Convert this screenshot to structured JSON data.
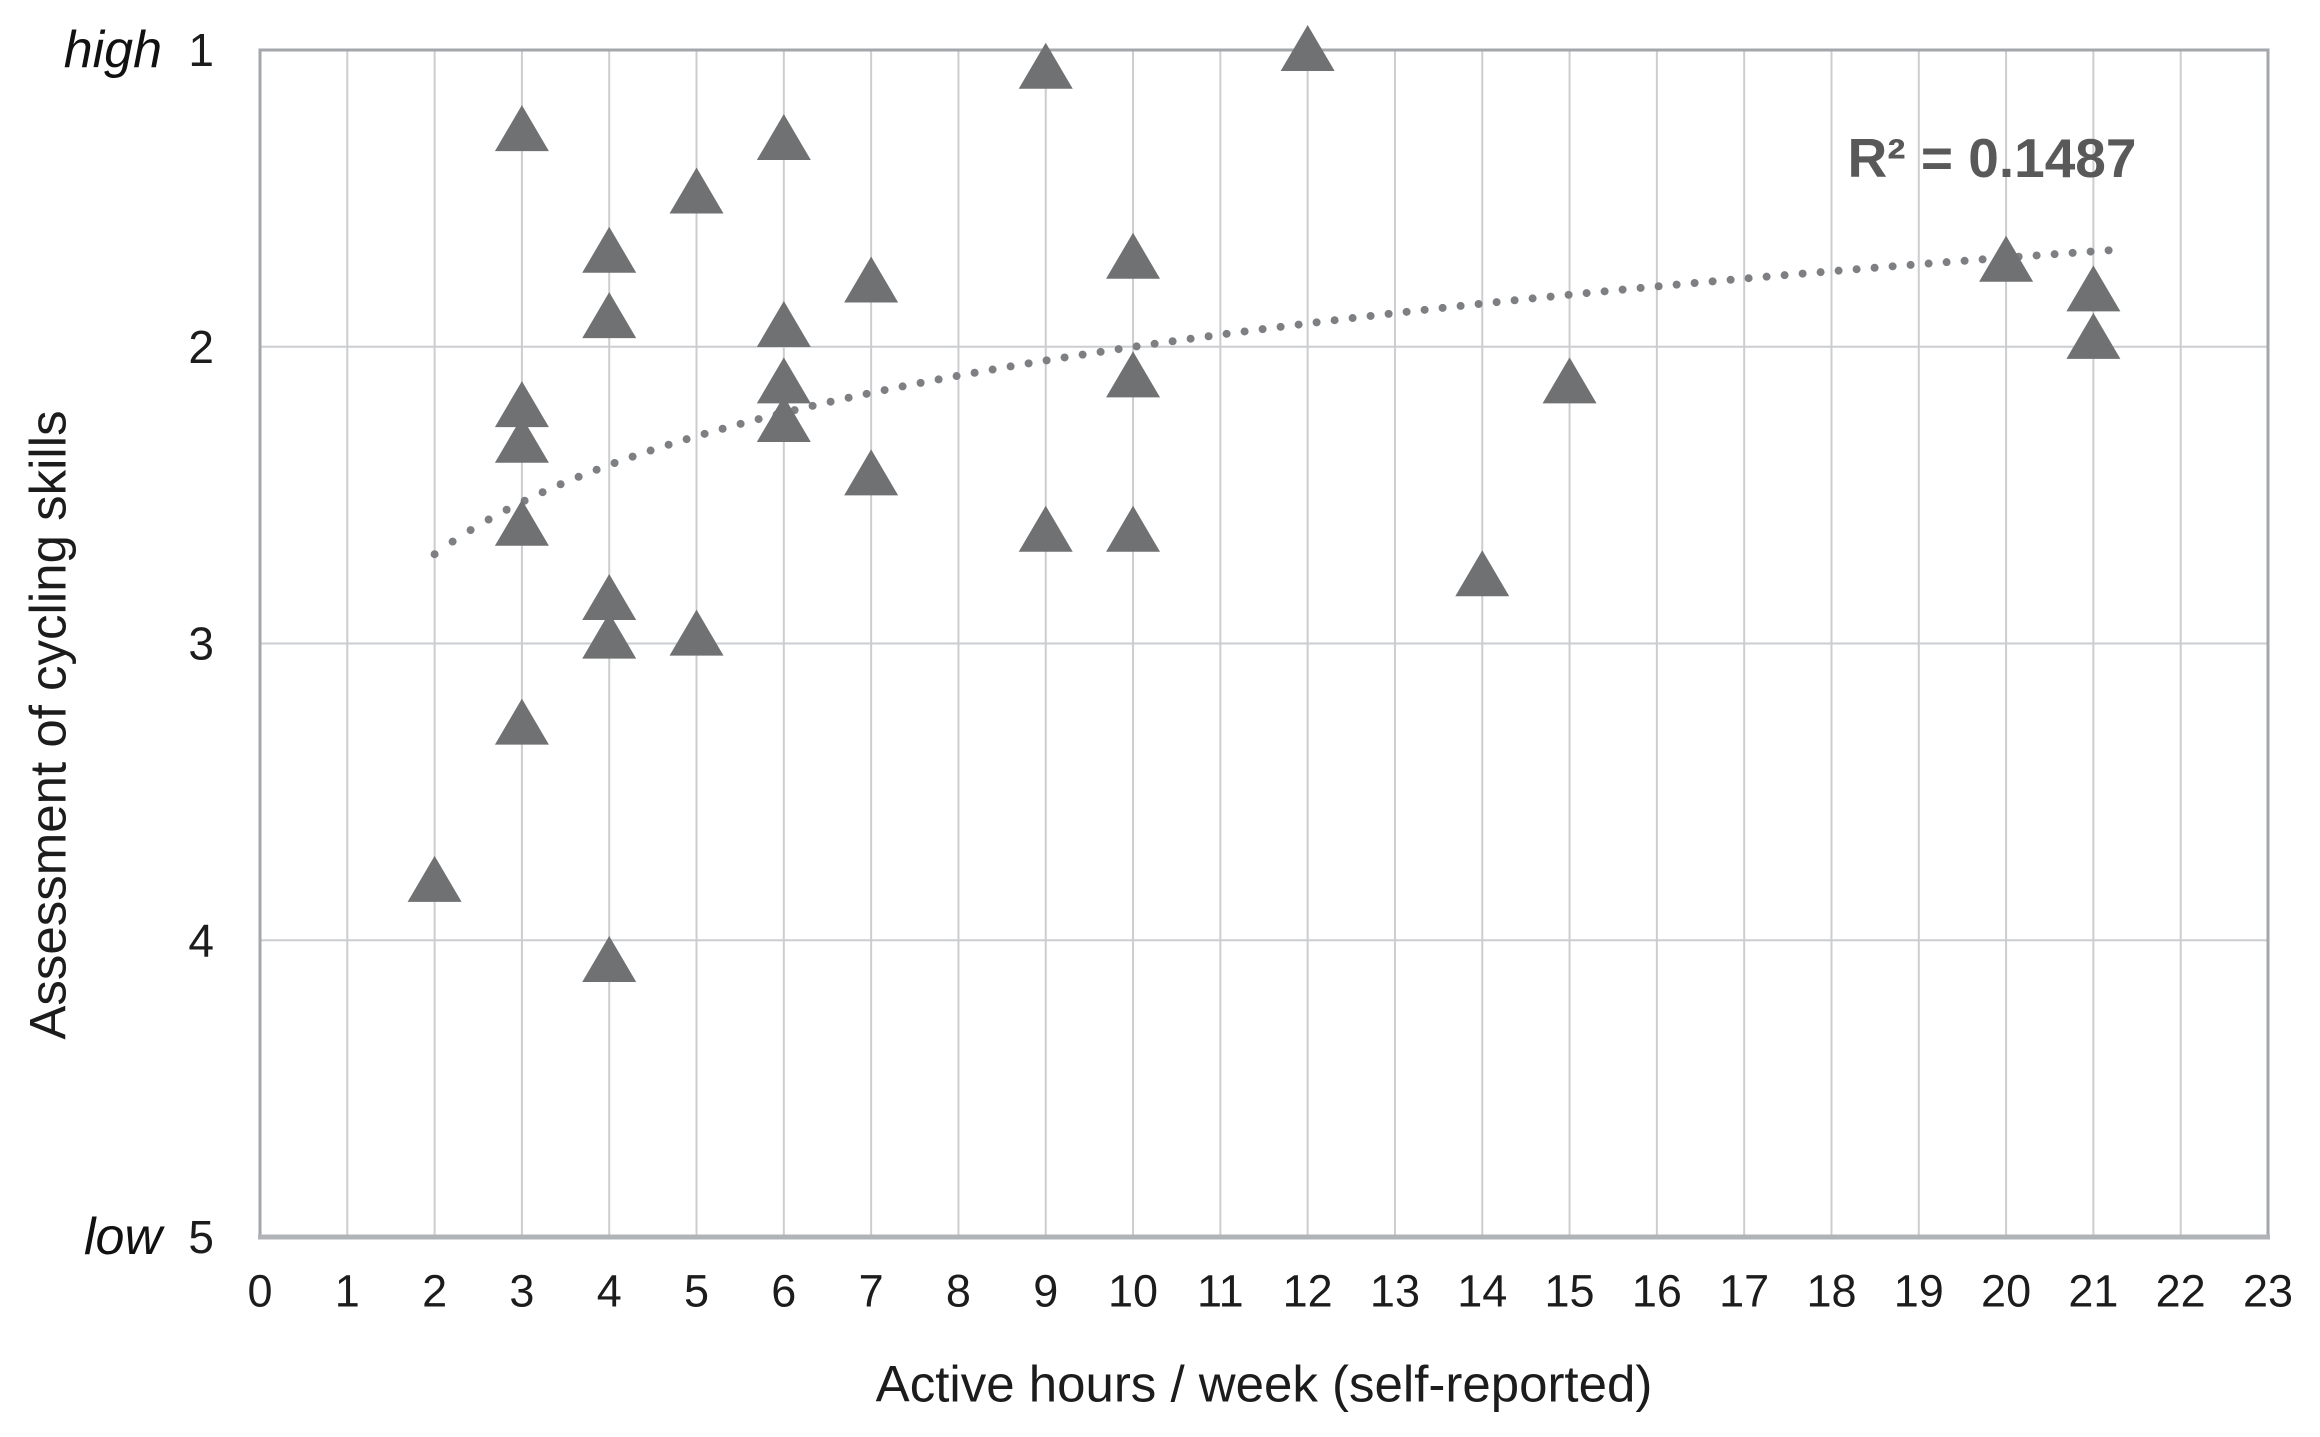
{
  "chart_data": {
    "type": "scatter",
    "title": "",
    "xlabel": "Active hours / week (self-reported)",
    "ylabel": "Assessment of cycling skills",
    "annotation": "R² = 0.1487",
    "marker": "triangle-up",
    "grid": "both",
    "legend": "none",
    "xlim": [
      0,
      23
    ],
    "ylim_top_to_bottom": [
      1,
      5
    ],
    "x_ticks": [
      0,
      1,
      2,
      3,
      4,
      5,
      6,
      7,
      8,
      9,
      10,
      11,
      12,
      13,
      14,
      15,
      16,
      17,
      18,
      19,
      20,
      21,
      22,
      23
    ],
    "y_ticks": [
      1,
      2,
      3,
      4,
      5
    ],
    "y_end_labels": {
      "high": "high",
      "low": "low"
    },
    "points": [
      [
        2,
        3.8
      ],
      [
        3,
        1.27
      ],
      [
        3,
        2.2
      ],
      [
        3,
        2.32
      ],
      [
        3,
        2.6
      ],
      [
        3,
        3.27
      ],
      [
        4,
        1.68
      ],
      [
        4,
        1.9
      ],
      [
        4,
        2.85
      ],
      [
        4,
        2.98
      ],
      [
        4,
        4.07
      ],
      [
        5,
        1.48
      ],
      [
        5,
        2.97
      ],
      [
        6,
        1.3
      ],
      [
        6,
        1.93
      ],
      [
        6,
        2.12
      ],
      [
        6,
        2.25
      ],
      [
        7,
        1.78
      ],
      [
        7,
        2.43
      ],
      [
        9,
        1.06
      ],
      [
        9,
        2.62
      ],
      [
        10,
        1.7
      ],
      [
        10,
        2.1
      ],
      [
        10,
        2.62
      ],
      [
        12,
        1.0
      ],
      [
        14,
        2.77
      ],
      [
        15,
        2.12
      ],
      [
        20,
        1.71
      ],
      [
        21,
        1.81
      ],
      [
        21,
        1.97
      ]
    ],
    "trendline": {
      "style": "dotted",
      "type": "logarithmic",
      "equation": "y = 3.0 - 0.434*ln(x)",
      "a": 3.0,
      "b": -0.434,
      "x_start": 2.0,
      "x_end": 21.3,
      "r_squared": 0.1487
    },
    "colors": {
      "marker": "#6f7172",
      "trend": "#7d7f82",
      "gridline": "#cbcdd0",
      "border": "#a3a7ab",
      "annotation": "#595959",
      "text": "#1c1c1c",
      "background": "#ffffff"
    }
  }
}
